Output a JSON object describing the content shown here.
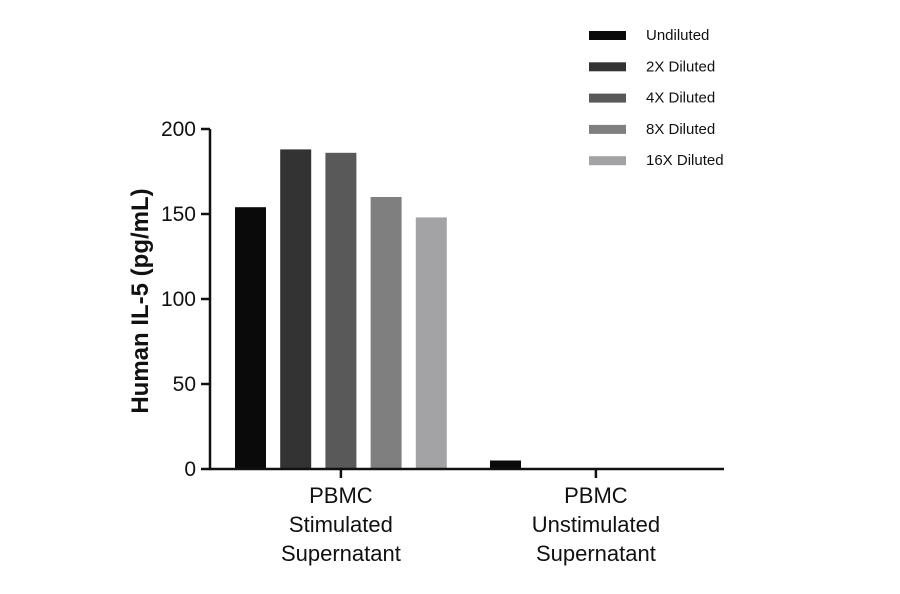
{
  "chart_data": {
    "type": "bar",
    "title": "",
    "xlabel": "",
    "ylabel": "Human IL-5 (pg/mL)",
    "ylim": [
      0,
      200
    ],
    "yticks": [
      0,
      50,
      100,
      150,
      200
    ],
    "grid": false,
    "legend_position": "top-right",
    "categories": [
      [
        "PBMC",
        "Stimulated",
        "Supernatant"
      ],
      [
        "PBMC",
        "Unstimulated",
        "Supernatant"
      ]
    ],
    "series": [
      {
        "name": "Undiluted",
        "color": "#0a0a0a",
        "values": [
          154,
          5
        ]
      },
      {
        "name": "2X Diluted",
        "color": "#333333",
        "values": [
          188,
          0
        ]
      },
      {
        "name": "4X Diluted",
        "color": "#595959",
        "values": [
          186,
          0
        ]
      },
      {
        "name": "8X Diluted",
        "color": "#7f7f7f",
        "values": [
          160,
          0
        ]
      },
      {
        "name": "16X Diluted",
        "color": "#a3a3a6",
        "values": [
          148,
          0
        ]
      }
    ]
  }
}
